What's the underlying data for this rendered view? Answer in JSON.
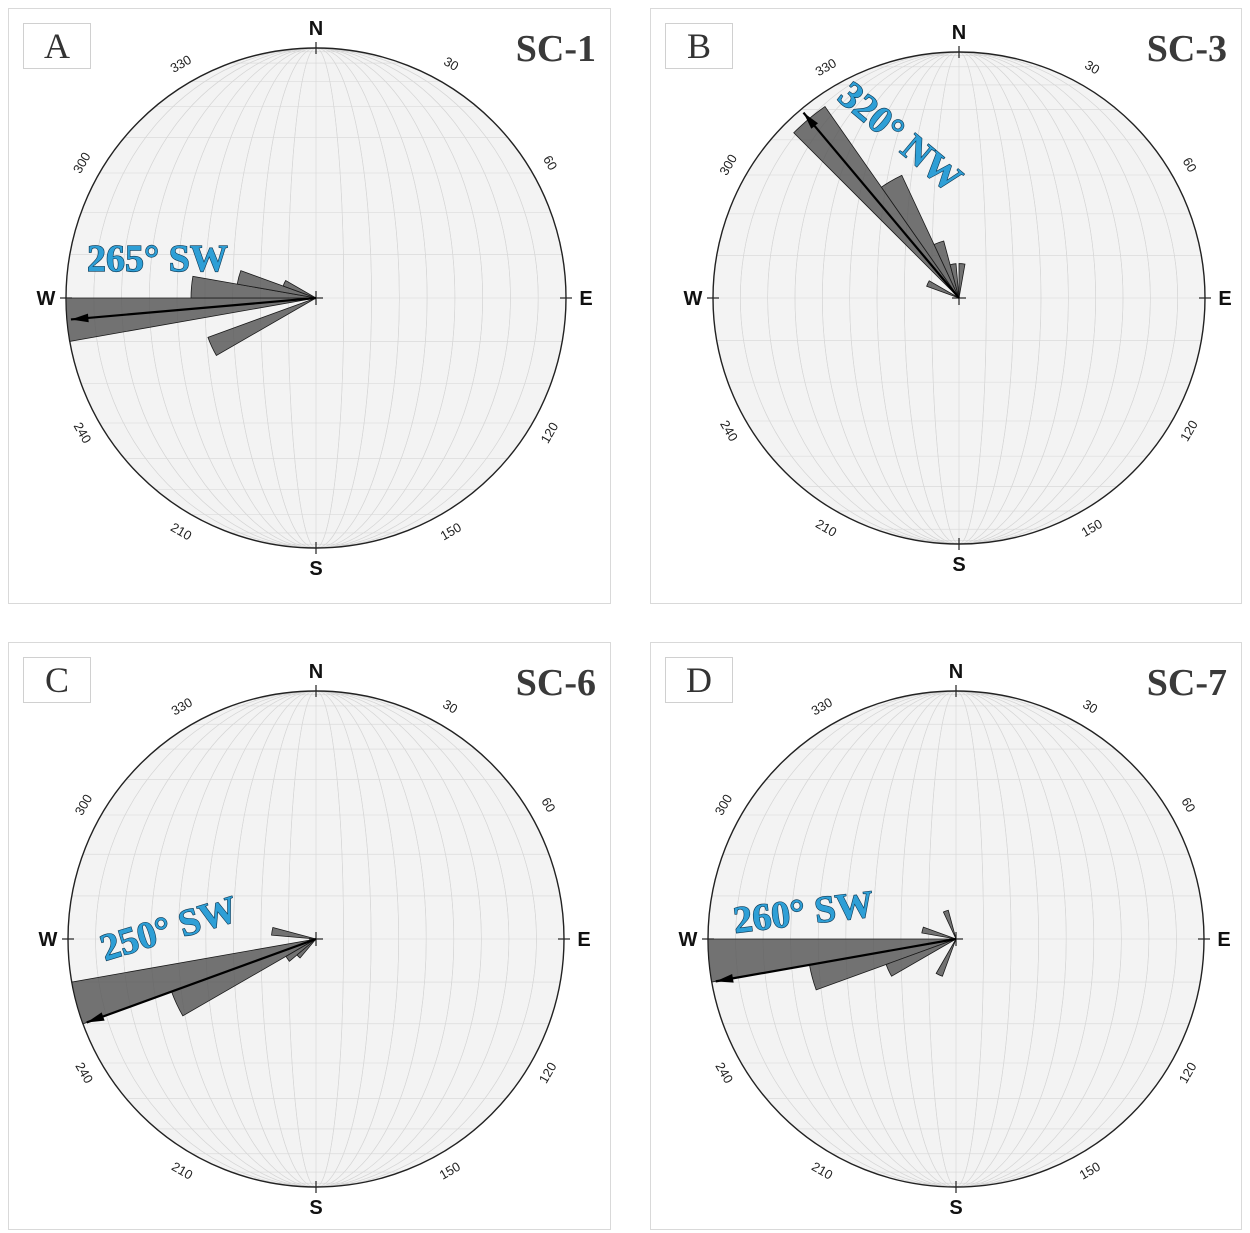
{
  "colors": {
    "bearing_text": "#2e9fd6",
    "petal_fill": "#5a5a5a",
    "net_line": "#d6d6d6",
    "net_bg": "#f3f3f3"
  },
  "compass": {
    "north": "N",
    "east": "E",
    "south": "S",
    "west": "W",
    "ticks": [
      "30",
      "60",
      "120",
      "150",
      "210",
      "240",
      "300",
      "330"
    ]
  },
  "chart_data": [
    {
      "type": "rose",
      "panel": "A",
      "title": "SC-1",
      "annotation": "265° SW",
      "mean_direction_deg": 265,
      "petals": [
        {
          "azimuth_deg": 265,
          "length": 1.0
        },
        {
          "azimuth_deg": 275,
          "length": 0.5
        },
        {
          "azimuth_deg": 285,
          "length": 0.32
        },
        {
          "azimuth_deg": 295,
          "length": 0.14
        },
        {
          "azimuth_deg": 245,
          "length": 0.46
        }
      ]
    },
    {
      "type": "rose",
      "panel": "B",
      "title": "SC-3",
      "annotation": "320° NW",
      "mean_direction_deg": 320,
      "petals": [
        {
          "azimuth_deg": 320,
          "length": 0.95
        },
        {
          "azimuth_deg": 330,
          "length": 0.55
        },
        {
          "azimuth_deg": 340,
          "length": 0.24
        },
        {
          "azimuth_deg": 350,
          "length": 0.14
        },
        {
          "azimuth_deg": 5,
          "length": 0.14
        },
        {
          "azimuth_deg": 295,
          "length": 0.14
        }
      ]
    },
    {
      "type": "rose",
      "panel": "C",
      "title": "SC-6",
      "annotation": "250° SW",
      "mean_direction_deg": 250,
      "petals": [
        {
          "azimuth_deg": 255,
          "length": 1.0
        },
        {
          "azimuth_deg": 245,
          "length": 0.62
        },
        {
          "azimuth_deg": 280,
          "length": 0.18
        },
        {
          "azimuth_deg": 235,
          "length": 0.14
        },
        {
          "azimuth_deg": 225,
          "length": 0.1
        }
      ]
    },
    {
      "type": "rose",
      "panel": "D",
      "title": "SC-7",
      "annotation": "260° SW",
      "mean_direction_deg": 260,
      "petals": [
        {
          "azimuth_deg": 265,
          "length": 1.0
        },
        {
          "azimuth_deg": 255,
          "length": 0.6
        },
        {
          "azimuth_deg": 245,
          "length": 0.3
        },
        {
          "azimuth_deg": 285,
          "length": 0.14
        },
        {
          "azimuth_deg": 340,
          "length": 0.12
        },
        {
          "azimuth_deg": 205,
          "length": 0.16
        }
      ]
    }
  ]
}
